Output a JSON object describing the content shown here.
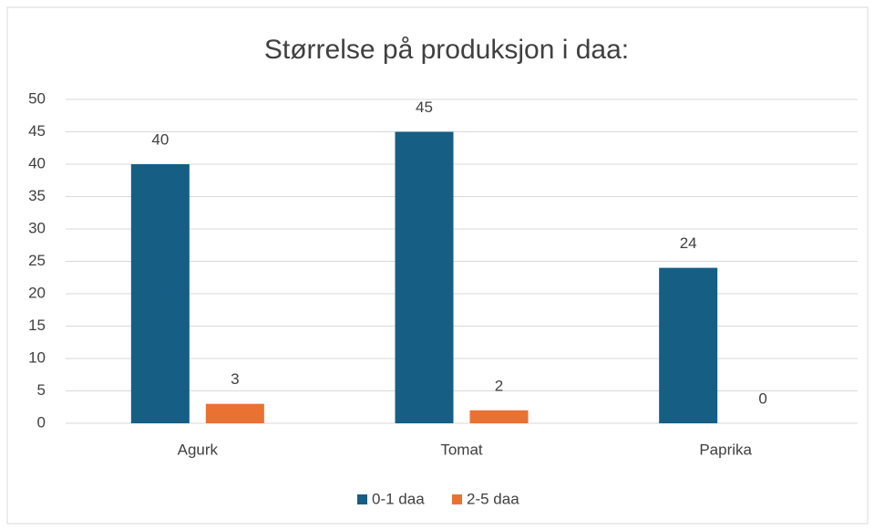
{
  "chart_data": {
    "type": "bar",
    "title": "Størrelse på produksjon i daa:",
    "categories": [
      "Agurk",
      "Tomat",
      "Paprika"
    ],
    "series": [
      {
        "name": "0-1 daa",
        "color": "#165e83",
        "values": [
          40,
          45,
          24
        ]
      },
      {
        "name": "2-5 daa",
        "color": "#e97132",
        "values": [
          3,
          2,
          0
        ]
      }
    ],
    "ylim": [
      0,
      50
    ],
    "yticks": [
      0,
      5,
      10,
      15,
      20,
      25,
      30,
      35,
      40,
      45,
      50
    ],
    "grid": true,
    "legend": "bottom"
  }
}
